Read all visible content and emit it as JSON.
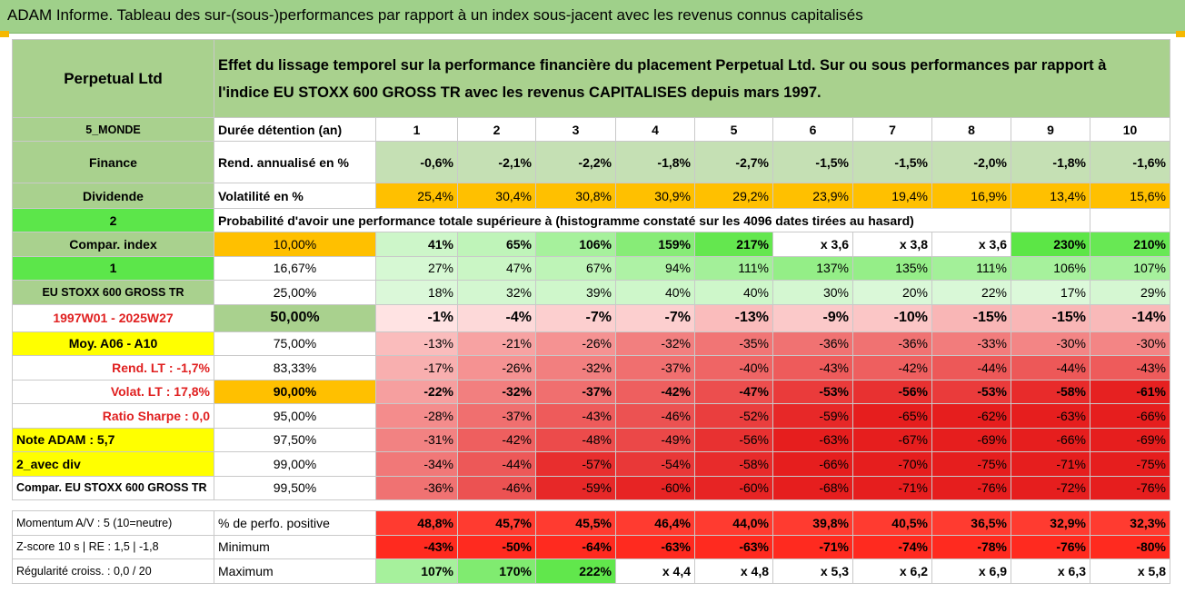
{
  "title": "ADAM Informe. Tableau des sur-(sous-)performances par rapport à un index sous-jacent avec les revenus connus capitalisés",
  "header": {
    "fund": "Perpetual Ltd",
    "description_line1": "Effet du lissage temporel sur la performance financière du placement Perpetual Ltd. Sur ou sous performances par rapport à",
    "description_line2": "l'indice EU STOXX 600 GROSS TR avec les revenus CAPITALISES depuis mars 1997."
  },
  "side": {
    "region": "5_MONDE",
    "sector": "Finance",
    "dividend": "Dividende",
    "two": "2",
    "compar_index": "Compar. index",
    "one": "1",
    "index_name": "EU STOXX 600 GROSS TR",
    "period": "1997W01 - 2025W27",
    "moy": "Moy. A06 - A10",
    "rend_lt": "Rend. LT :   -1,7%",
    "volat_lt": "Volat. LT :   17,8%",
    "sharpe": "Ratio Sharpe :   0,0",
    "note": "Note ADAM : 5,7",
    "avec_div": "2_avec div",
    "compar_full": "Compar. EU STOXX 600 GROSS TR",
    "momentum": "Momentum A/V : 5 (10=neutre)",
    "zscore": "Z-score 10 s | RE : 1,5 | -1,8",
    "regularite": "Régularité croiss. : 0,0 / 20"
  },
  "row_labels": {
    "duree": "Durée détention (an)",
    "rend": "Rend. annualisé en %",
    "vol": "Volatilité en %",
    "proba": "Probabilité d'avoir une performance totale supérieure à (histogramme constaté sur les 4096 dates tirées au hasard)",
    "perfo_pos": "% de perfo. positive",
    "minimum": "Minimum",
    "maximum": "Maximum"
  },
  "chart_data": {
    "type": "table",
    "years": [
      "1",
      "2",
      "3",
      "4",
      "5",
      "6",
      "7",
      "8",
      "9",
      "10"
    ],
    "rend_annualise": [
      "-0,6%",
      "-2,1%",
      "-2,2%",
      "-1,8%",
      "-2,7%",
      "-1,5%",
      "-1,5%",
      "-2,0%",
      "-1,8%",
      "-1,6%"
    ],
    "volatilite": [
      "25,4%",
      "30,4%",
      "30,8%",
      "30,9%",
      "29,2%",
      "23,9%",
      "19,4%",
      "16,9%",
      "13,4%",
      "15,6%"
    ],
    "percentiles": [
      {
        "p": "10,00%",
        "values": [
          "41%",
          "65%",
          "106%",
          "159%",
          "217%",
          "x 3,6",
          "x 3,8",
          "x 3,6",
          "230%",
          "210%"
        ]
      },
      {
        "p": "16,67%",
        "values": [
          "27%",
          "47%",
          "67%",
          "94%",
          "111%",
          "137%",
          "135%",
          "111%",
          "106%",
          "107%"
        ]
      },
      {
        "p": "25,00%",
        "values": [
          "18%",
          "32%",
          "39%",
          "40%",
          "40%",
          "30%",
          "20%",
          "22%",
          "17%",
          "29%"
        ]
      },
      {
        "p": "50,00%",
        "values": [
          "-1%",
          "-4%",
          "-7%",
          "-7%",
          "-13%",
          "-9%",
          "-10%",
          "-15%",
          "-15%",
          "-14%"
        ]
      },
      {
        "p": "75,00%",
        "values": [
          "-13%",
          "-21%",
          "-26%",
          "-32%",
          "-35%",
          "-36%",
          "-36%",
          "-33%",
          "-30%",
          "-30%"
        ]
      },
      {
        "p": "83,33%",
        "values": [
          "-17%",
          "-26%",
          "-32%",
          "-37%",
          "-40%",
          "-43%",
          "-42%",
          "-44%",
          "-44%",
          "-43%"
        ]
      },
      {
        "p": "90,00%",
        "values": [
          "-22%",
          "-32%",
          "-37%",
          "-42%",
          "-47%",
          "-53%",
          "-56%",
          "-53%",
          "-58%",
          "-61%"
        ]
      },
      {
        "p": "95,00%",
        "values": [
          "-28%",
          "-37%",
          "-43%",
          "-46%",
          "-52%",
          "-59%",
          "-65%",
          "-62%",
          "-63%",
          "-66%"
        ]
      },
      {
        "p": "97,50%",
        "values": [
          "-31%",
          "-42%",
          "-48%",
          "-49%",
          "-56%",
          "-63%",
          "-67%",
          "-69%",
          "-66%",
          "-69%"
        ]
      },
      {
        "p": "99,00%",
        "values": [
          "-34%",
          "-44%",
          "-57%",
          "-54%",
          "-58%",
          "-66%",
          "-70%",
          "-75%",
          "-71%",
          "-75%"
        ]
      },
      {
        "p": "99,50%",
        "values": [
          "-36%",
          "-46%",
          "-59%",
          "-60%",
          "-60%",
          "-68%",
          "-71%",
          "-76%",
          "-72%",
          "-76%"
        ]
      }
    ],
    "perfo_positive": [
      "48,8%",
      "45,7%",
      "45,5%",
      "46,4%",
      "44,0%",
      "39,8%",
      "40,5%",
      "36,5%",
      "32,9%",
      "32,3%"
    ],
    "minimum": [
      "-43%",
      "-50%",
      "-64%",
      "-63%",
      "-63%",
      "-71%",
      "-74%",
      "-78%",
      "-76%",
      "-80%"
    ],
    "maximum": [
      "107%",
      "170%",
      "222%",
      "x 4,4",
      "x 4,8",
      "x 5,3",
      "x 6,2",
      "x 6,9",
      "x 6,3",
      "x 5,8"
    ]
  }
}
